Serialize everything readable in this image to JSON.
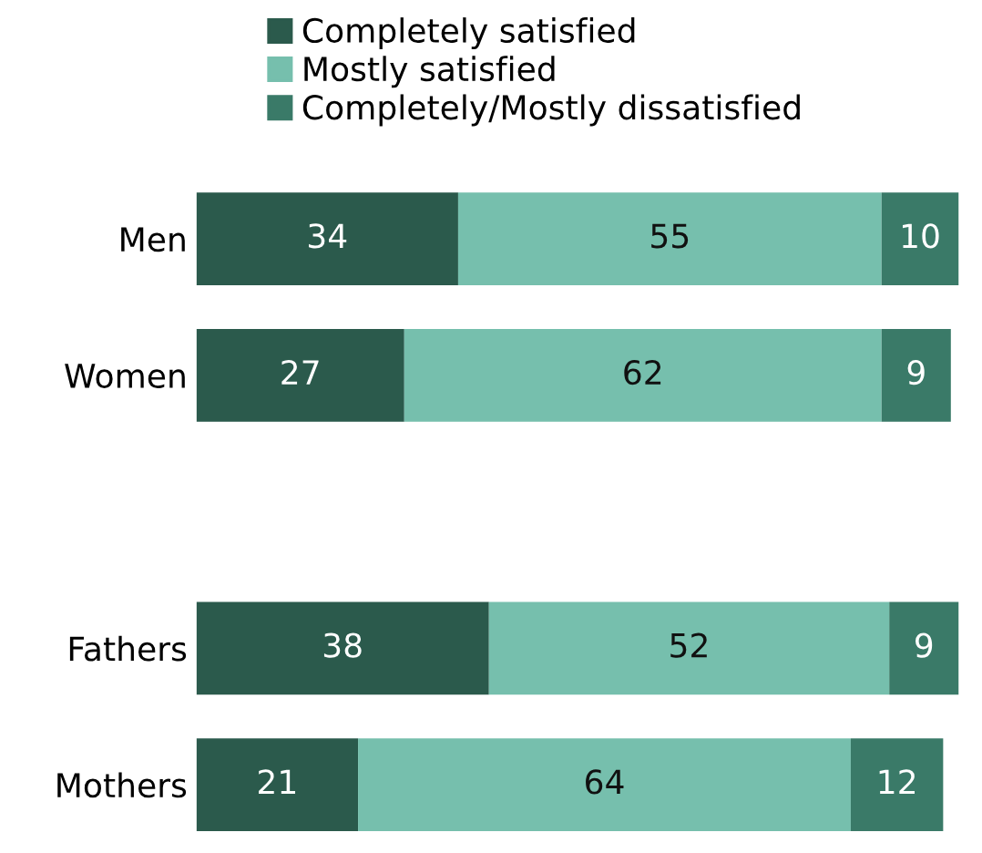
{
  "chart_data": {
    "type": "bar",
    "orientation": "horizontal",
    "stacked": true,
    "data_labels": true,
    "legend": "top",
    "grid": false,
    "categories": [
      "Men",
      "Women",
      null,
      "Fathers",
      "Mothers"
    ],
    "series": [
      {
        "name": "Completely satisfied",
        "color": "#2b5a4c",
        "values": [
          34,
          27,
          null,
          38,
          21
        ]
      },
      {
        "name": "Mostly satisfied",
        "color": "#76bfad",
        "values": [
          55,
          62,
          null,
          52,
          64
        ]
      },
      {
        "name": "Completely/Mostly dissatisfied",
        "color": "#3a7a68",
        "values": [
          10,
          9,
          null,
          9,
          12
        ]
      }
    ]
  }
}
